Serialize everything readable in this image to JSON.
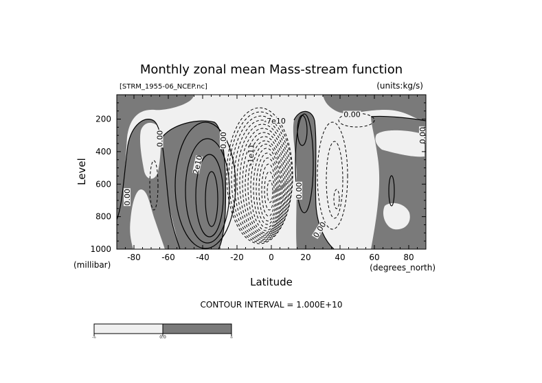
{
  "chart_data": {
    "type": "contour",
    "title": "Monthly zonal mean Mass-stream function",
    "file_label": "[STRM_1955-06_NCEP.nc]",
    "units_label": "(units:kg/s)",
    "xlabel": "Latitude",
    "x_unit": "(degrees_north)",
    "ylabel": "Level",
    "y_unit": "(millibar)",
    "xlim": [
      -90,
      90
    ],
    "ylim": [
      1000,
      50
    ],
    "y_inverted": true,
    "x_ticks": [
      -80,
      -60,
      -40,
      -20,
      0,
      20,
      40,
      60,
      80
    ],
    "y_ticks": [
      200,
      400,
      600,
      800,
      1000
    ],
    "contour_interval_text": "CONTOUR INTERVAL = 1.000E+10",
    "contour_interval": 10000000000,
    "colors": {
      "negative": "#f0f0f0",
      "positive": "#7a7a7a"
    },
    "colorbar": {
      "labels": [
        "-∞",
        "0.0",
        "∞"
      ],
      "colors": [
        "#f0f0f0",
        "#7a7a7a"
      ]
    },
    "cells": [
      {
        "name": "polar-south-positive",
        "sign": "positive",
        "lat": -87,
        "lev": 480,
        "contours": 1
      },
      {
        "name": "south-negative-cell",
        "sign": "negative",
        "lat": -70,
        "lev": 480,
        "contours": 1
      },
      {
        "name": "south-ferrel-positive",
        "sign": "positive",
        "lat": -40,
        "lev": 580,
        "contours": 4
      },
      {
        "name": "hadley-negative",
        "sign": "negative",
        "lat": 0,
        "lev": 560,
        "contours": 18
      },
      {
        "name": "north-positive-band",
        "sign": "positive",
        "lat": 18,
        "lev": 500,
        "contours": 2
      },
      {
        "name": "north-negative-cell",
        "sign": "negative",
        "lat": 38,
        "lev": 540,
        "contours": 3
      },
      {
        "name": "polar-north-positive",
        "sign": "positive",
        "lat": 70,
        "lev": 600,
        "contours": 1
      }
    ],
    "contour_labels": [
      {
        "text": "0.00",
        "lat": -65,
        "lev": 320,
        "rotate": -90
      },
      {
        "text": "2e10",
        "lat": -43,
        "lev": 480,
        "rotate": -78
      },
      {
        "text": "0.00",
        "lat": -28,
        "lev": 330,
        "rotate": -90
      },
      {
        "text": "-1e11",
        "lat": -12,
        "lev": 420,
        "rotate": -88
      },
      {
        "text": "-7e10",
        "lat": 2,
        "lev": 210,
        "rotate": 0
      },
      {
        "text": "0.00",
        "lat": 16,
        "lev": 640,
        "rotate": -90
      },
      {
        "text": "0.00",
        "lat": 47,
        "lev": 170,
        "rotate": 0
      },
      {
        "text": "0.00",
        "lat": 88,
        "lev": 300,
        "rotate": -90
      },
      {
        "text": "0.00",
        "lat": -84,
        "lev": 680,
        "rotate": -90
      },
      {
        "text": "0.00",
        "lat": 28,
        "lev": 880,
        "rotate": -58
      }
    ]
  }
}
